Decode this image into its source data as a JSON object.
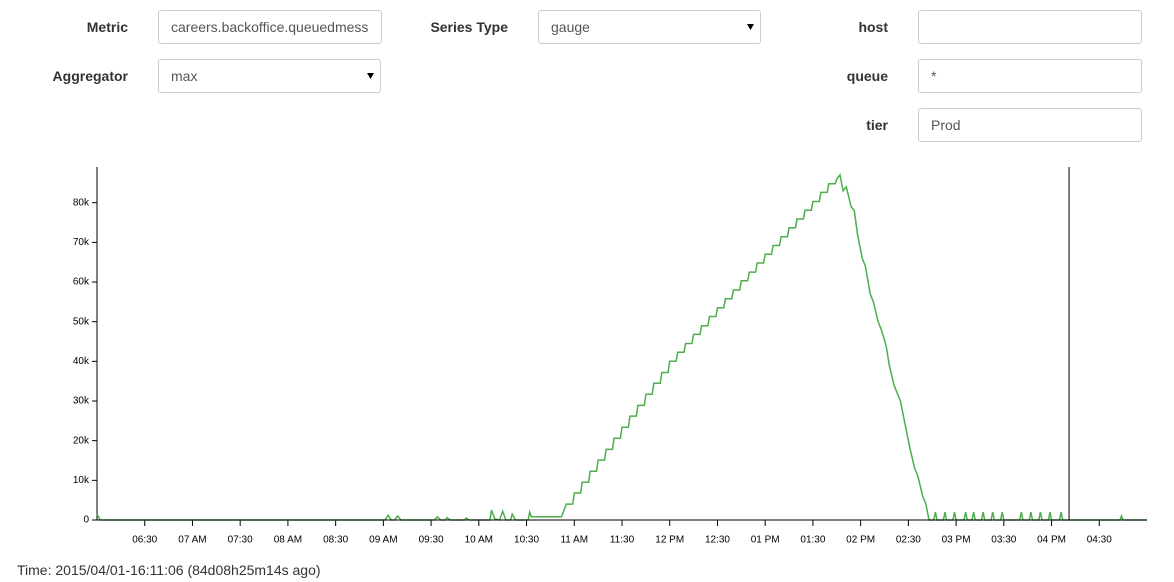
{
  "form": {
    "metric": {
      "label": "Metric",
      "value": "careers.backoffice.queuedmess"
    },
    "series_type": {
      "label": "Series Type",
      "value": "gauge"
    },
    "host": {
      "label": "host",
      "value": ""
    },
    "aggregator": {
      "label": "Aggregator",
      "value": "max"
    },
    "queue": {
      "label": "queue",
      "value": "*"
    },
    "tier": {
      "label": "tier",
      "value": "Prod"
    }
  },
  "chart_data": {
    "type": "line",
    "color": "#4cae4c",
    "xlim": [
      360,
      1020
    ],
    "ylim": [
      0,
      89000
    ],
    "xticks": [
      {
        "value": 390,
        "label": "06:30"
      },
      {
        "value": 420,
        "label": "07 AM"
      },
      {
        "value": 450,
        "label": "07:30"
      },
      {
        "value": 480,
        "label": "08 AM"
      },
      {
        "value": 510,
        "label": "08:30"
      },
      {
        "value": 540,
        "label": "09 AM"
      },
      {
        "value": 570,
        "label": "09:30"
      },
      {
        "value": 600,
        "label": "10 AM"
      },
      {
        "value": 630,
        "label": "10:30"
      },
      {
        "value": 660,
        "label": "11 AM"
      },
      {
        "value": 690,
        "label": "11:30"
      },
      {
        "value": 720,
        "label": "12 PM"
      },
      {
        "value": 750,
        "label": "12:30"
      },
      {
        "value": 780,
        "label": "01 PM"
      },
      {
        "value": 810,
        "label": "01:30"
      },
      {
        "value": 840,
        "label": "02 PM"
      },
      {
        "value": 870,
        "label": "02:30"
      },
      {
        "value": 900,
        "label": "03 PM"
      },
      {
        "value": 930,
        "label": "03:30"
      },
      {
        "value": 960,
        "label": "04 PM"
      },
      {
        "value": 990,
        "label": "04:30"
      }
    ],
    "yticks": [
      0,
      {
        "value": 10000,
        "label": "10k"
      },
      {
        "value": 20000,
        "label": "20k"
      },
      {
        "value": 30000,
        "label": "30k"
      },
      {
        "value": 40000,
        "label": "40k"
      },
      {
        "value": 50000,
        "label": "50k"
      },
      {
        "value": 60000,
        "label": "60k"
      },
      {
        "value": 70000,
        "label": "70k"
      },
      {
        "value": 80000,
        "label": "80k"
      }
    ],
    "cursor_x": 971,
    "x": [
      360,
      362,
      541,
      543,
      545,
      547,
      549,
      551,
      572,
      574,
      576,
      579,
      580,
      582,
      591,
      592,
      594,
      607,
      608,
      610,
      613,
      615,
      617,
      620,
      621,
      623,
      631,
      632,
      633,
      652,
      655,
      659,
      660,
      664,
      665,
      669,
      670,
      674,
      675,
      679,
      680,
      684,
      685,
      689,
      690,
      694,
      695,
      699,
      700,
      704,
      705,
      709,
      710,
      714,
      715,
      719,
      720,
      724,
      725,
      729,
      730,
      734,
      735,
      739,
      740,
      744,
      745,
      749,
      750,
      754,
      755,
      759,
      760,
      764,
      765,
      769,
      770,
      774,
      775,
      779,
      780,
      784,
      785,
      789,
      790,
      794,
      795,
      799,
      800,
      804,
      805,
      809,
      810,
      814,
      815,
      819,
      820,
      824,
      825,
      827,
      829,
      831,
      834,
      836,
      838,
      841,
      843,
      846,
      848,
      851,
      853,
      856,
      858,
      861,
      865,
      868,
      871,
      874,
      876,
      879,
      881,
      883,
      886,
      887,
      888,
      892,
      893,
      894,
      898,
      899,
      900,
      905,
      906,
      907,
      910,
      911,
      912,
      916,
      917,
      918,
      922,
      923,
      924,
      928,
      929,
      930,
      940,
      941,
      942,
      946,
      947,
      948,
      952,
      953,
      954,
      958,
      959,
      960,
      965,
      966,
      967,
      1003,
      1004,
      1005,
      1020
    ],
    "values": [
      1500,
      0,
      0,
      1200,
      0,
      0,
      1000,
      0,
      0,
      800,
      0,
      0,
      600,
      0,
      0,
      500,
      0,
      0,
      2500,
      300,
      0,
      2200,
      0,
      0,
      1500,
      0,
      0,
      2000,
      800,
      800,
      4000,
      4000,
      6800,
      6800,
      9500,
      9500,
      12300,
      12300,
      15100,
      15100,
      17800,
      17800,
      20600,
      20600,
      23400,
      23400,
      26200,
      26200,
      28900,
      28900,
      31700,
      31700,
      34500,
      34500,
      37200,
      37200,
      40000,
      40000,
      42300,
      42300,
      44500,
      44500,
      46800,
      46800,
      49000,
      49000,
      51300,
      51300,
      53500,
      53500,
      55800,
      55800,
      58000,
      58000,
      60300,
      60300,
      62500,
      62500,
      64800,
      64800,
      67000,
      67000,
      69200,
      69200,
      71400,
      71400,
      73700,
      73700,
      75900,
      75900,
      78100,
      78100,
      80300,
      80300,
      82600,
      82600,
      84800,
      84800,
      86000,
      87000,
      83000,
      84000,
      79000,
      78000,
      72000,
      66000,
      64000,
      57000,
      55000,
      50000,
      48000,
      44000,
      39000,
      34000,
      30000,
      24000,
      18000,
      13000,
      11000,
      6000,
      4000,
      0,
      0,
      2000,
      0,
      0,
      2000,
      0,
      0,
      2000,
      0,
      0,
      2000,
      0,
      0,
      2000,
      0,
      0,
      2000,
      0,
      0,
      2000,
      0,
      0,
      2000,
      0,
      0,
      2000,
      0,
      0,
      2000,
      0,
      0,
      2000,
      0,
      0,
      2000,
      0,
      0,
      2000,
      0,
      0,
      1000,
      0,
      0
    ]
  },
  "footer": "Time: 2015/04/01-16:11:06 (84d08h25m14s ago)"
}
